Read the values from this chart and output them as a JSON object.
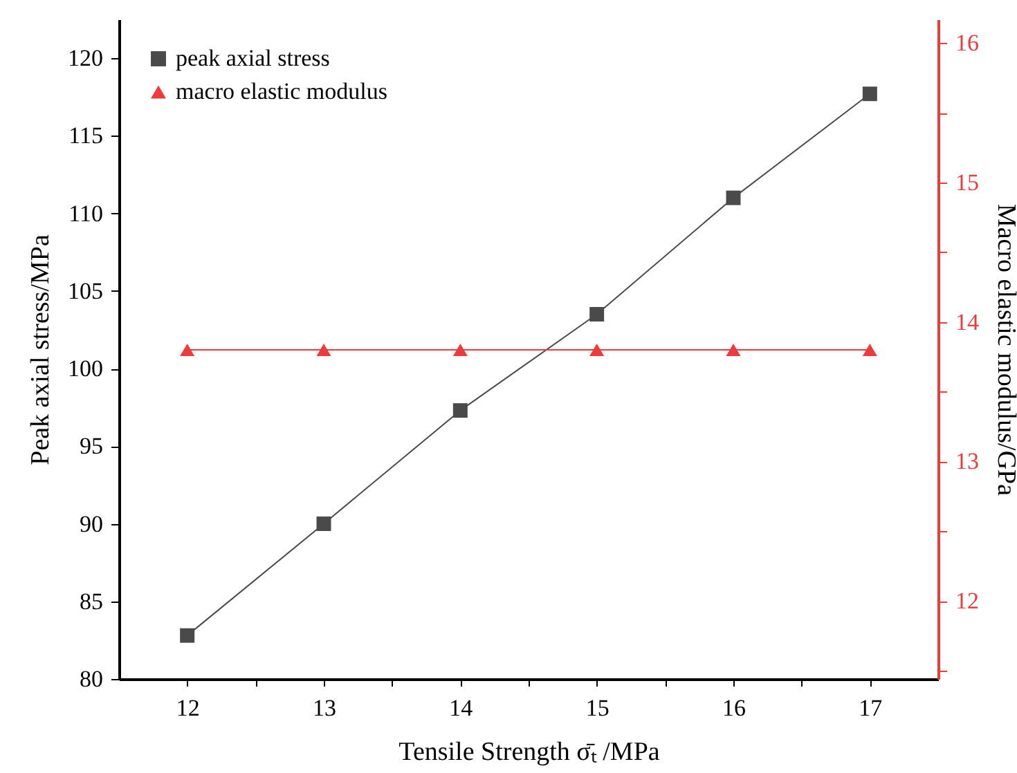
{
  "chart_data": {
    "type": "line",
    "xlabel": "Tensile Strength σ̄ₜ /MPa",
    "ylabel": "Peak axial stress/MPa",
    "y2label": "Macro elastic modulus/GPa",
    "x": [
      12,
      13,
      14,
      15,
      16,
      17
    ],
    "xlim": [
      11.5,
      17.5
    ],
    "xticks": [
      12,
      {
        "value": 12.5,
        "label": null
      },
      13,
      {
        "value": 13.5,
        "label": null
      },
      14,
      {
        "value": 14.5,
        "label": null
      },
      15,
      {
        "value": 15.5,
        "label": null
      },
      16,
      {
        "value": 16.5,
        "label": null
      },
      17
    ],
    "ylim": [
      80,
      122.5
    ],
    "yticks": [
      80,
      85,
      90,
      95,
      100,
      105,
      110,
      115,
      120
    ],
    "y2lim": [
      11.44,
      16.17
    ],
    "y2ticks": [
      {
        "value": 11.5,
        "label": null
      },
      12,
      {
        "value": 12.5,
        "label": null
      },
      13,
      {
        "value": 13.5,
        "label": null
      },
      14,
      {
        "value": 14.5,
        "label": null
      },
      15,
      {
        "value": 15.5,
        "label": null
      },
      16
    ],
    "legend": "top left",
    "series": [
      {
        "name": "peak axial stress",
        "color": "#4a4a4a",
        "marker": "square",
        "values": [
          82.8,
          90,
          97.3,
          103.5,
          111,
          117.7
        ]
      },
      {
        "name": "macro elastic modulus",
        "color": "#ee3a3a",
        "marker": "triangle",
        "axis": "y2",
        "values": [
          13.8,
          13.8,
          13.8,
          13.8,
          13.8,
          13.8
        ]
      }
    ]
  }
}
